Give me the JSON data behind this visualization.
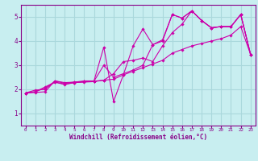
{
  "title": "",
  "xlabel": "Windchill (Refroidissement éolien,°C)",
  "background_color": "#c8eef0",
  "grid_color": "#aad8dc",
  "line_color": "#cc00aa",
  "xlim": [
    -0.5,
    23.5
  ],
  "ylim": [
    0.5,
    5.5
  ],
  "xticks": [
    0,
    1,
    2,
    3,
    4,
    5,
    6,
    7,
    8,
    9,
    10,
    11,
    12,
    13,
    14,
    15,
    16,
    17,
    18,
    19,
    20,
    21,
    22,
    23
  ],
  "yticks": [
    1,
    2,
    3,
    4,
    5
  ],
  "series": [
    {
      "x": [
        0,
        1,
        2,
        3,
        4,
        5,
        6,
        7,
        8,
        9,
        10,
        11,
        12,
        13,
        14,
        15,
        16,
        17,
        18,
        19,
        20,
        21,
        22,
        23
      ],
      "y": [
        1.85,
        1.97,
        2.0,
        2.35,
        2.25,
        2.3,
        2.35,
        2.35,
        3.75,
        1.5,
        2.6,
        3.8,
        4.5,
        3.85,
        4.05,
        5.1,
        4.95,
        5.25,
        4.85,
        4.55,
        4.6,
        4.6,
        5.1,
        3.45
      ]
    },
    {
      "x": [
        0,
        1,
        2,
        3,
        4,
        5,
        6,
        7,
        8,
        9,
        10,
        11,
        12,
        13,
        14,
        15,
        16,
        17,
        18,
        19,
        20,
        21,
        22,
        23
      ],
      "y": [
        1.85,
        1.9,
        2.05,
        2.3,
        2.2,
        2.28,
        2.3,
        2.32,
        2.38,
        2.42,
        2.6,
        2.75,
        2.9,
        3.05,
        3.2,
        3.5,
        3.65,
        3.8,
        3.9,
        4.0,
        4.1,
        4.25,
        4.6,
        3.45
      ]
    },
    {
      "x": [
        0,
        1,
        2,
        3,
        4,
        5,
        6,
        7,
        8,
        9,
        10,
        11,
        12,
        13,
        14,
        15,
        16,
        17,
        18,
        19,
        20,
        21,
        22,
        23
      ],
      "y": [
        1.85,
        1.87,
        1.9,
        2.35,
        2.28,
        2.3,
        2.32,
        2.34,
        2.38,
        2.65,
        3.15,
        3.2,
        3.3,
        3.15,
        3.8,
        4.35,
        4.7,
        5.25,
        4.85,
        4.55,
        4.6,
        4.6,
        5.1,
        3.45
      ]
    },
    {
      "x": [
        0,
        1,
        2,
        3,
        4,
        5,
        6,
        7,
        8,
        9,
        10,
        11,
        12,
        13,
        14,
        15,
        16,
        17,
        18,
        19,
        20,
        21,
        22,
        23
      ],
      "y": [
        1.85,
        1.9,
        2.1,
        2.3,
        2.22,
        2.28,
        2.32,
        2.34,
        3.0,
        2.5,
        2.65,
        2.8,
        3.0,
        3.85,
        4.0,
        5.1,
        4.95,
        5.25,
        4.85,
        4.55,
        4.6,
        4.6,
        5.1,
        3.45
      ]
    }
  ]
}
